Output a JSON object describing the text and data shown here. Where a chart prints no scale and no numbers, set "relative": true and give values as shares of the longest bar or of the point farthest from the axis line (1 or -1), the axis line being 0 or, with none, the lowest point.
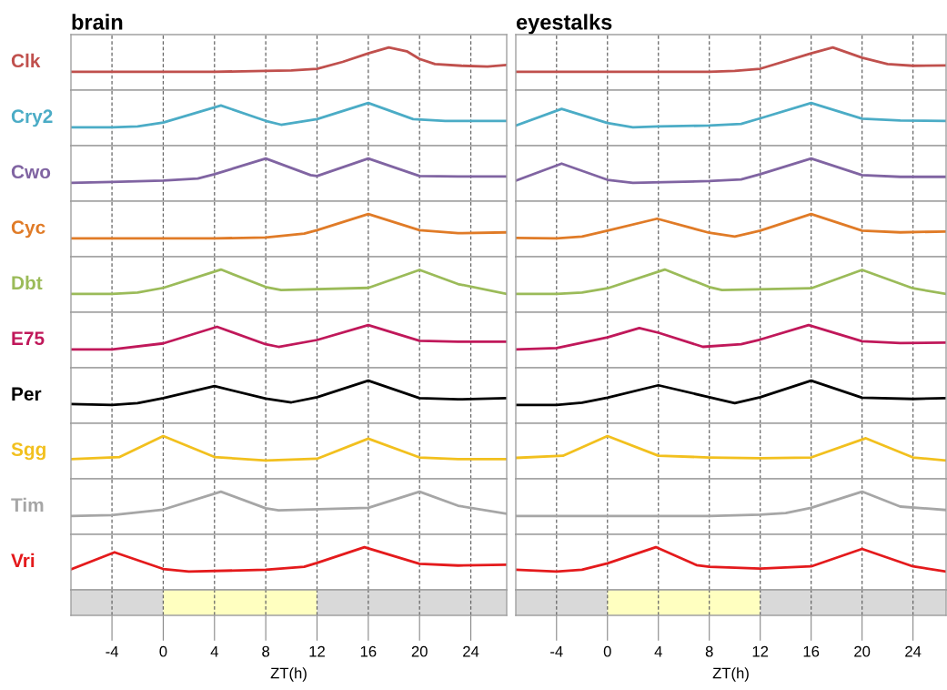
{
  "chart_data": [
    {
      "type": "line",
      "title": "brain",
      "relative": true,
      "xlim": [
        -7.2,
        26.8
      ],
      "xticks": [
        -4,
        0,
        4,
        8,
        12,
        16,
        20,
        24
      ],
      "tick_labels": false,
      "grid": "x",
      "line_style": "solid",
      "series": [
        {
          "name": "Clk",
          "color": "#c0504d",
          "x": [
            -7.2,
            -4,
            0,
            4,
            8,
            10,
            12,
            14,
            16,
            17.6,
            19,
            20,
            21.2,
            23.3,
            25.3,
            26.8
          ],
          "values": [
            0.43,
            0.43,
            0.43,
            0.43,
            0.45,
            0.46,
            0.5,
            0.66,
            0.86,
            1,
            0.91,
            0.73,
            0.61,
            0.57,
            0.55,
            0.59
          ]
        }
      ]
    },
    {
      "type": "line",
      "relative": true,
      "xlim": [
        -7.2,
        26.8
      ],
      "xticks": [
        -4,
        0,
        4,
        8,
        12,
        16,
        20,
        24
      ],
      "tick_labels": false,
      "grid": "x",
      "line_style": "solid",
      "series": [
        {
          "name": "Cry2",
          "color": "#4bacc6",
          "x": [
            -7.2,
            -4,
            -2,
            0,
            4.5,
            8,
            9.2,
            12,
            16,
            19.5,
            22,
            26.8
          ],
          "values": [
            0.43,
            0.43,
            0.45,
            0.54,
            0.94,
            0.58,
            0.49,
            0.62,
            1,
            0.62,
            0.58,
            0.58
          ]
        }
      ]
    },
    {
      "type": "line",
      "relative": true,
      "xlim": [
        -7.2,
        26.8
      ],
      "xticks": [
        -4,
        0,
        4,
        8,
        12,
        16,
        20,
        24
      ],
      "tick_labels": false,
      "grid": "x",
      "line_style": "solid",
      "series": [
        {
          "name": "Cwo",
          "color": "#8064a2",
          "x": [
            -7.2,
            -4,
            0,
            2.7,
            4,
            8,
            11.5,
            12,
            16,
            20,
            23,
            26.8
          ],
          "values": [
            0.43,
            0.45,
            0.48,
            0.53,
            0.63,
            1,
            0.61,
            0.59,
            1,
            0.59,
            0.58,
            0.58
          ]
        }
      ]
    },
    {
      "type": "line",
      "relative": true,
      "xlim": [
        -7.2,
        26.8
      ],
      "xticks": [
        -4,
        0,
        4,
        8,
        12,
        16,
        20,
        24
      ],
      "tick_labels": false,
      "grid": "x",
      "line_style": "solid",
      "series": [
        {
          "name": "Cyc",
          "color": "#e07b27",
          "x": [
            -7.2,
            4,
            8,
            11,
            12,
            16,
            20,
            23,
            26.8
          ],
          "values": [
            0.43,
            0.43,
            0.45,
            0.54,
            0.62,
            1,
            0.62,
            0.55,
            0.57
          ]
        }
      ]
    },
    {
      "type": "line",
      "relative": true,
      "xlim": [
        -7.2,
        26.8
      ],
      "xticks": [
        -4,
        0,
        4,
        8,
        12,
        16,
        20,
        24
      ],
      "tick_labels": false,
      "grid": "x",
      "line_style": "solid",
      "series": [
        {
          "name": "Dbt",
          "color": "#9bbb59",
          "x": [
            -7.2,
            -4,
            -2,
            0,
            4.5,
            8,
            9.2,
            16,
            20,
            23,
            26.8
          ],
          "values": [
            0.43,
            0.43,
            0.46,
            0.57,
            1,
            0.59,
            0.52,
            0.57,
            0.99,
            0.66,
            0.43
          ]
        }
      ]
    },
    {
      "type": "line",
      "relative": true,
      "xlim": [
        -7.2,
        26.8
      ],
      "xticks": [
        -4,
        0,
        4,
        8,
        12,
        16,
        20,
        24
      ],
      "tick_labels": false,
      "grid": "x",
      "line_style": "solid",
      "series": [
        {
          "name": "E75",
          "color": "#c0185a",
          "x": [
            -7.2,
            -4,
            0,
            4.2,
            8,
            9,
            12,
            16,
            20,
            23,
            26.8
          ],
          "values": [
            0.43,
            0.43,
            0.57,
            0.96,
            0.55,
            0.49,
            0.65,
            1,
            0.63,
            0.61,
            0.61
          ]
        }
      ]
    },
    {
      "type": "line",
      "relative": true,
      "xlim": [
        -7.2,
        26.8
      ],
      "xticks": [
        -4,
        0,
        4,
        8,
        12,
        16,
        20,
        24
      ],
      "tick_labels": false,
      "grid": "x",
      "line_style": "solid",
      "series": [
        {
          "name": "Per",
          "color": "#000000",
          "x": [
            -7.2,
            -4,
            -2,
            0,
            4,
            8,
            10,
            12,
            16,
            20,
            23,
            26.8
          ],
          "values": [
            0.45,
            0.43,
            0.47,
            0.59,
            0.87,
            0.58,
            0.49,
            0.61,
            1,
            0.59,
            0.56,
            0.59
          ]
        }
      ]
    },
    {
      "type": "line",
      "relative": true,
      "xlim": [
        -7.2,
        26.8
      ],
      "xticks": [
        -4,
        0,
        4,
        8,
        12,
        16,
        20,
        24
      ],
      "tick_labels": false,
      "grid": "x",
      "line_style": "solid",
      "series": [
        {
          "name": "Sgg",
          "color": "#f2c01e",
          "x": [
            -7.2,
            -3.4,
            0,
            4,
            8,
            12,
            16,
            20,
            23,
            26.8
          ],
          "values": [
            0.46,
            0.51,
            1,
            0.51,
            0.43,
            0.47,
            0.94,
            0.5,
            0.46,
            0.46
          ]
        }
      ]
    },
    {
      "type": "line",
      "relative": true,
      "xlim": [
        -7.2,
        26.8
      ],
      "xticks": [
        -4,
        0,
        4,
        8,
        12,
        16,
        20,
        24
      ],
      "tick_labels": false,
      "grid": "x",
      "line_style": "solid",
      "series": [
        {
          "name": "Tim",
          "color": "#a6a6a6",
          "x": [
            -7.2,
            -4,
            0,
            4.5,
            8,
            9,
            16,
            20,
            23,
            26.8
          ],
          "values": [
            0.43,
            0.45,
            0.58,
            1,
            0.61,
            0.56,
            0.62,
            1,
            0.67,
            0.48
          ]
        }
      ]
    },
    {
      "type": "line",
      "relative": true,
      "xlim": [
        -7.2,
        26.8
      ],
      "xticks": [
        -4,
        0,
        4,
        8,
        12,
        16,
        20,
        24
      ],
      "tick_labels": false,
      "grid": "x",
      "line_style": "solid",
      "series": [
        {
          "name": "Vri",
          "color": "#e41a1c",
          "x": [
            -7.2,
            -3.8,
            0,
            2,
            8,
            11,
            12,
            15.7,
            20,
            23,
            26.8
          ],
          "values": [
            0.48,
            0.88,
            0.49,
            0.43,
            0.47,
            0.54,
            0.63,
            1,
            0.61,
            0.57,
            0.59
          ]
        }
      ]
    },
    {
      "type": "bar",
      "orientation": "horizontal",
      "stacked": true,
      "categories": [
        null
      ],
      "xlabel": "ZT(h)",
      "xlim": [
        -7.2,
        26.8
      ],
      "xticks": [
        -4,
        0,
        4,
        8,
        12,
        16,
        20,
        24
      ],
      "tick_labels": "x",
      "grid": "x",
      "series": [
        {
          "color": "#d9d9d9",
          "values": [
            -7.2
          ]
        },
        {
          "color": "#ffffc0",
          "values": [
            12
          ]
        },
        {
          "color": "#d9d9d9",
          "values": [
            14.8
          ]
        }
      ]
    },
    {
      "type": "line",
      "title": "eyestalks",
      "relative": true,
      "xlim": [
        -7.2,
        26.6
      ],
      "xticks": [
        -4,
        0,
        4,
        8,
        12,
        16,
        20,
        24
      ],
      "tick_labels": false,
      "grid": "x",
      "line_style": "solid",
      "series": [
        {
          "color": "#c0504d",
          "x": [
            -7.2,
            4,
            8,
            10,
            12,
            16,
            17.7,
            20,
            22,
            24,
            26.6
          ],
          "values": [
            0.43,
            0.43,
            0.43,
            0.45,
            0.5,
            0.86,
            1,
            0.76,
            0.61,
            0.57,
            0.58
          ]
        }
      ]
    },
    {
      "type": "line",
      "relative": true,
      "xlim": [
        -7.2,
        26.6
      ],
      "xticks": [
        -4,
        0,
        4,
        8,
        12,
        16,
        20,
        24
      ],
      "tick_labels": false,
      "grid": "x",
      "line_style": "solid",
      "series": [
        {
          "color": "#4bacc6",
          "x": [
            -7.2,
            -3.6,
            0,
            2,
            4,
            8,
            10.5,
            12,
            16,
            20,
            23,
            26.6
          ],
          "values": [
            0.47,
            0.86,
            0.53,
            0.43,
            0.45,
            0.47,
            0.51,
            0.64,
            1,
            0.63,
            0.59,
            0.58
          ]
        }
      ]
    },
    {
      "type": "line",
      "relative": true,
      "xlim": [
        -7.2,
        26.6
      ],
      "xticks": [
        -4,
        0,
        4,
        8,
        12,
        16,
        20,
        24
      ],
      "tick_labels": false,
      "grid": "x",
      "line_style": "solid",
      "series": [
        {
          "color": "#8064a2",
          "x": [
            -7.2,
            -3.6,
            0,
            2,
            8,
            10.5,
            12,
            16,
            20,
            23,
            26.6
          ],
          "values": [
            0.48,
            0.88,
            0.5,
            0.43,
            0.47,
            0.51,
            0.63,
            1,
            0.61,
            0.57,
            0.57
          ]
        }
      ]
    },
    {
      "type": "line",
      "relative": true,
      "xlim": [
        -7.2,
        26.6
      ],
      "xticks": [
        -4,
        0,
        4,
        8,
        12,
        16,
        20,
        24
      ],
      "tick_labels": false,
      "grid": "x",
      "line_style": "solid",
      "series": [
        {
          "color": "#e07b27",
          "x": [
            -7.2,
            -4,
            -2,
            0,
            3.9,
            8,
            10,
            12,
            16,
            20,
            23,
            26.6
          ],
          "values": [
            0.44,
            0.43,
            0.47,
            0.61,
            0.89,
            0.56,
            0.47,
            0.61,
            1,
            0.61,
            0.57,
            0.59
          ]
        }
      ]
    },
    {
      "type": "line",
      "relative": true,
      "xlim": [
        -7.2,
        26.6
      ],
      "xticks": [
        -4,
        0,
        4,
        8,
        12,
        16,
        20,
        24
      ],
      "tick_labels": false,
      "grid": "x",
      "line_style": "solid",
      "series": [
        {
          "color": "#9bbb59",
          "x": [
            -7.2,
            -4,
            -2,
            0,
            4.5,
            8,
            9,
            16,
            20,
            24,
            26.6
          ],
          "values": [
            0.43,
            0.43,
            0.46,
            0.56,
            1,
            0.59,
            0.52,
            0.56,
            0.99,
            0.56,
            0.43
          ]
        }
      ]
    },
    {
      "type": "line",
      "relative": true,
      "xlim": [
        -7.2,
        26.6
      ],
      "xticks": [
        -4,
        0,
        4,
        8,
        12,
        16,
        20,
        24
      ],
      "tick_labels": false,
      "grid": "x",
      "line_style": "solid",
      "series": [
        {
          "color": "#c0185a",
          "x": [
            -7.2,
            -4,
            0,
            2.5,
            4,
            7.5,
            10.5,
            12,
            15.8,
            20,
            23,
            26.6
          ],
          "values": [
            0.43,
            0.46,
            0.71,
            0.93,
            0.82,
            0.49,
            0.55,
            0.66,
            1,
            0.62,
            0.58,
            0.59
          ]
        }
      ]
    },
    {
      "type": "line",
      "relative": true,
      "xlim": [
        -7.2,
        26.6
      ],
      "xticks": [
        -4,
        0,
        4,
        8,
        12,
        16,
        20,
        24
      ],
      "tick_labels": false,
      "grid": "x",
      "line_style": "solid",
      "series": [
        {
          "color": "#000000",
          "x": [
            -7.2,
            -4,
            -2,
            0,
            4,
            8,
            10,
            12,
            16,
            20,
            24,
            26.6
          ],
          "values": [
            0.43,
            0.43,
            0.48,
            0.6,
            0.89,
            0.61,
            0.47,
            0.61,
            1,
            0.6,
            0.57,
            0.59
          ]
        }
      ]
    },
    {
      "type": "line",
      "relative": true,
      "xlim": [
        -7.2,
        26.6
      ],
      "xticks": [
        -4,
        0,
        4,
        8,
        12,
        16,
        20,
        24
      ],
      "tick_labels": false,
      "grid": "x",
      "line_style": "solid",
      "series": [
        {
          "color": "#f2c01e",
          "x": [
            -7.2,
            -3.5,
            0,
            4,
            8,
            12,
            16,
            20.3,
            24,
            26.6
          ],
          "values": [
            0.49,
            0.54,
            1,
            0.54,
            0.5,
            0.48,
            0.5,
            0.95,
            0.5,
            0.43
          ]
        }
      ]
    },
    {
      "type": "line",
      "relative": true,
      "xlim": [
        -7.2,
        26.6
      ],
      "xticks": [
        -4,
        0,
        4,
        8,
        12,
        16,
        20,
        24
      ],
      "tick_labels": false,
      "grid": "x",
      "line_style": "solid",
      "series": [
        {
          "color": "#a6a6a6",
          "x": [
            -7.2,
            8,
            12,
            14,
            16,
            20,
            23,
            26.6
          ],
          "values": [
            0.43,
            0.43,
            0.46,
            0.5,
            0.62,
            1,
            0.65,
            0.57
          ]
        }
      ]
    },
    {
      "type": "line",
      "relative": true,
      "xlim": [
        -7.2,
        26.6
      ],
      "xticks": [
        -4,
        0,
        4,
        8,
        12,
        16,
        20,
        24
      ],
      "tick_labels": false,
      "grid": "x",
      "line_style": "solid",
      "series": [
        {
          "color": "#e41a1c",
          "x": [
            -7.2,
            -4,
            -2,
            0,
            3.8,
            7,
            8,
            12,
            16,
            20,
            24,
            26.6
          ],
          "values": [
            0.47,
            0.43,
            0.47,
            0.62,
            1,
            0.58,
            0.54,
            0.5,
            0.55,
            0.96,
            0.55,
            0.43
          ]
        }
      ]
    },
    {
      "type": "bar",
      "orientation": "horizontal",
      "stacked": true,
      "categories": [
        null
      ],
      "xlabel": "ZT(h)",
      "xlim": [
        -7.2,
        26.6
      ],
      "xticks": [
        -4,
        0,
        4,
        8,
        12,
        16,
        20,
        24
      ],
      "tick_labels": "x",
      "grid": "x",
      "series": [
        {
          "color": "#d9d9d9",
          "values": [
            -7.2
          ]
        },
        {
          "color": "#ffffc0",
          "values": [
            12
          ]
        },
        {
          "color": "#d9d9d9",
          "values": [
            14.6
          ]
        }
      ]
    }
  ]
}
